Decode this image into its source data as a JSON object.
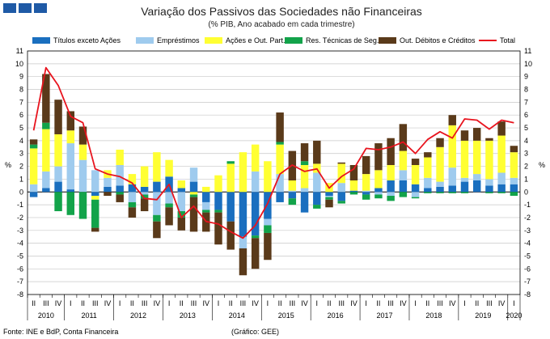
{
  "logo": {
    "name": "brand-logo-squares",
    "color": "#1f5aa6"
  },
  "chart_data": {
    "type": "bar",
    "stacked": true,
    "title": "Variação dos Passivos das Sociedades não Financeiras",
    "subtitle": "(% PIB, Ano acabado em cada trimestre)",
    "ylabel_left": "%",
    "ylabel_right": "%",
    "ylim": [
      -8,
      11
    ],
    "yticks": [
      -8,
      -7,
      -6,
      -5,
      -4,
      -3,
      -2,
      -1,
      0,
      1,
      2,
      3,
      4,
      5,
      6,
      7,
      8,
      9,
      10,
      11
    ],
    "grid": "horizontal",
    "legend_position": "top",
    "quarter_labels": [
      "II",
      "III",
      "IV",
      "I",
      "II",
      "III",
      "IV",
      "I",
      "II",
      "III",
      "IV",
      "I",
      "II",
      "III",
      "IV",
      "I",
      "II",
      "III",
      "IV",
      "I",
      "II",
      "III",
      "IV",
      "I",
      "II",
      "III",
      "IV",
      "I",
      "II",
      "III",
      "IV",
      "I",
      "II",
      "III",
      "IV",
      "I",
      "II",
      "III",
      "IV",
      "I"
    ],
    "years": [
      {
        "label": "2010",
        "start": 0,
        "count": 3
      },
      {
        "label": "2011",
        "start": 3,
        "count": 4
      },
      {
        "label": "2012",
        "start": 7,
        "count": 4
      },
      {
        "label": "2013",
        "start": 11,
        "count": 4
      },
      {
        "label": "2014",
        "start": 15,
        "count": 4
      },
      {
        "label": "2015",
        "start": 19,
        "count": 4
      },
      {
        "label": "2016",
        "start": 23,
        "count": 4
      },
      {
        "label": "2017",
        "start": 27,
        "count": 4
      },
      {
        "label": "2018",
        "start": 31,
        "count": 4
      },
      {
        "label": "2019",
        "start": 35,
        "count": 4
      },
      {
        "label": "2020",
        "start": 39,
        "count": 1
      }
    ],
    "series": [
      {
        "name": "Títulos exceto Ações",
        "color": "#1a6fbf",
        "values": [
          -0.4,
          0.3,
          0.8,
          0.2,
          0.0,
          -0.3,
          0.4,
          0.5,
          0.6,
          0.4,
          0.8,
          1.2,
          0.3,
          0.8,
          -0.8,
          -1.4,
          -2.3,
          -3.5,
          -3.4,
          -2.1,
          -0.8,
          -0.5,
          -1.6,
          -1.0,
          -0.3,
          -0.7,
          0.1,
          -0.2,
          0.3,
          0.9,
          0.9,
          0.6,
          0.3,
          0.4,
          0.5,
          0.8,
          0.9,
          0.5,
          0.6,
          0.6
        ]
      },
      {
        "name": "Empréstimos",
        "color": "#9fcbee",
        "values": [
          0.6,
          1.3,
          1.2,
          3.6,
          2.5,
          1.7,
          0.7,
          1.6,
          -0.8,
          -0.2,
          -1.8,
          -0.9,
          -1.5,
          1.1,
          -0.6,
          0.0,
          0.0,
          -0.9,
          1.6,
          -0.5,
          1.4,
          0.1,
          0.3,
          1.5,
          -0.1,
          0.7,
          0.0,
          0.1,
          -0.2,
          -0.3,
          0.8,
          -0.4,
          0.8,
          0.4,
          1.4,
          0.3,
          0.5,
          0.5,
          0.9,
          0.5
        ]
      },
      {
        "name": "Ações e Out. Part.",
        "color": "#ffff33",
        "values": [
          2.8,
          3.3,
          2.5,
          1.0,
          1.2,
          -0.3,
          0.6,
          1.2,
          0.8,
          1.6,
          2.3,
          1.3,
          0.6,
          -0.2,
          0.4,
          1.3,
          2.2,
          3.1,
          2.1,
          2.4,
          2.3,
          0.8,
          1.8,
          0.7,
          0.7,
          1.5,
          0.8,
          1.3,
          1.4,
          1.2,
          1.5,
          1.5,
          1.6,
          2.7,
          3.3,
          2.9,
          2.6,
          3.0,
          2.9,
          2.0
        ]
      },
      {
        "name": "Res. Técnicas de Seg.",
        "color": "#12a34a",
        "values": [
          0.3,
          0.5,
          -1.5,
          -1.8,
          -2.1,
          -2.2,
          0.0,
          -0.2,
          -0.4,
          -0.3,
          -0.5,
          -0.3,
          -0.5,
          -0.2,
          -0.2,
          -0.2,
          0.2,
          0.0,
          -0.2,
          -0.6,
          0.2,
          -0.5,
          0.3,
          -0.3,
          -0.2,
          -0.2,
          -0.2,
          -0.4,
          -0.3,
          -0.4,
          -0.4,
          -0.1,
          -0.1,
          -0.1,
          -0.1,
          -0.1,
          0.0,
          -0.1,
          -0.1,
          -0.3
        ]
      },
      {
        "name": "Out. Débitos e Créditos",
        "color": "#5a3a1a",
        "values": [
          0.4,
          3.8,
          2.7,
          1.5,
          1.4,
          -0.3,
          -0.3,
          -0.6,
          -0.8,
          -1.0,
          -1.3,
          -1.4,
          -1.0,
          -2.7,
          -1.5,
          -2.5,
          -2.2,
          -2.1,
          -2.4,
          -2.1,
          2.3,
          2.3,
          1.4,
          1.8,
          -0.6,
          0.1,
          1.2,
          1.4,
          2.1,
          2.1,
          2.1,
          0.5,
          0.4,
          0.7,
          0.8,
          0.8,
          1.0,
          0.2,
          1.1,
          0.5
        ]
      }
    ],
    "line_series": {
      "name": "Total",
      "color": "#e8141e",
      "values": [
        4.8,
        9.7,
        8.3,
        5.9,
        5.4,
        1.8,
        1.4,
        1.2,
        0.7,
        -0.5,
        -0.6,
        0.6,
        -2.0,
        -1.1,
        -2.3,
        -2.5,
        -3.1,
        -3.6,
        -2.6,
        -0.9,
        1.4,
        2.1,
        1.6,
        1.8,
        0.3,
        1.2,
        1.8,
        3.4,
        3.3,
        3.5,
        3.9,
        3.0,
        4.1,
        4.7,
        4.2,
        5.7,
        5.6,
        4.9,
        5.6,
        5.4
      ]
    },
    "source": "Fonte: INE e BdP, Conta Financeira",
    "credit": "(Gráfico: GEE)"
  }
}
